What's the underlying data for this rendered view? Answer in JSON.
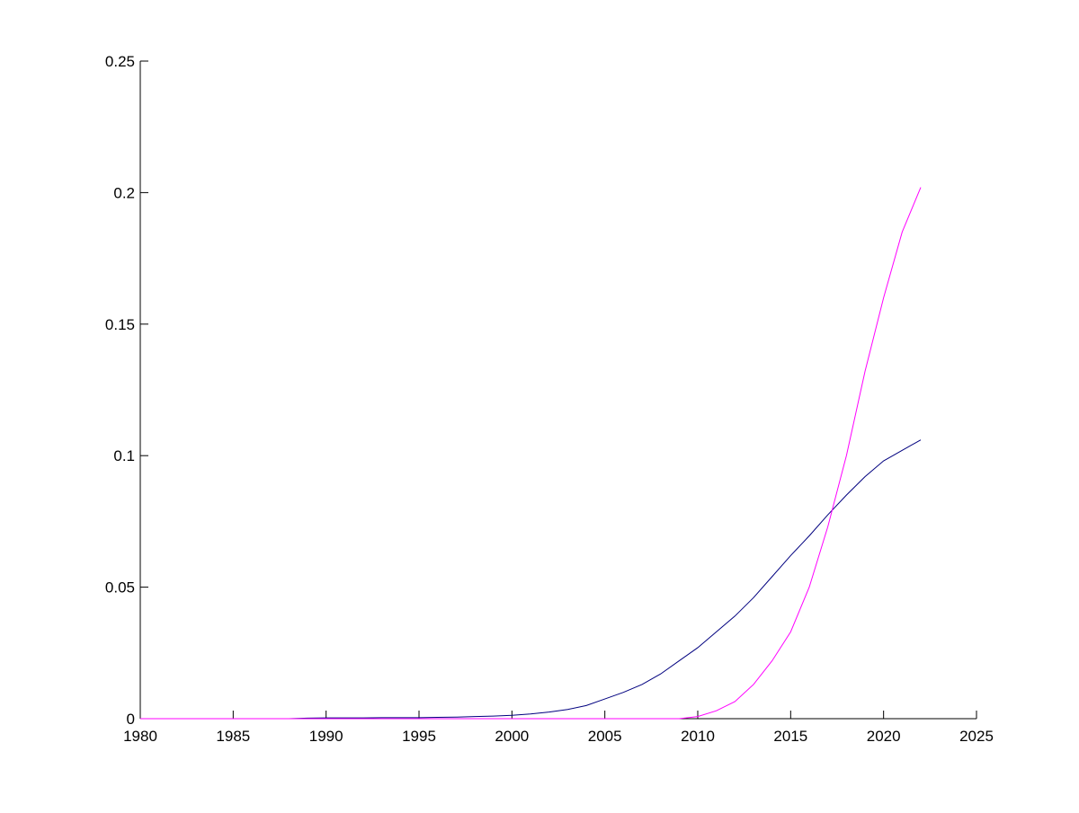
{
  "chart_data": {
    "type": "line",
    "x": [
      1980,
      1981,
      1982,
      1983,
      1984,
      1985,
      1986,
      1987,
      1988,
      1989,
      1990,
      1991,
      1992,
      1993,
      1994,
      1995,
      1996,
      1997,
      1998,
      1999,
      2000,
      2001,
      2002,
      2003,
      2004,
      2005,
      2006,
      2007,
      2008,
      2009,
      2010,
      2011,
      2012,
      2013,
      2014,
      2015,
      2016,
      2017,
      2018,
      2019,
      2020,
      2021,
      2022
    ],
    "series": [
      {
        "color": "#00007f",
        "values": [
          0,
          0,
          0,
          0,
          0,
          0,
          0,
          0,
          0,
          0.0002,
          0.0003,
          0.0003,
          0.0003,
          0.0004,
          0.0004,
          0.0004,
          0.0005,
          0.0006,
          0.0008,
          0.001,
          0.0013,
          0.0018,
          0.0025,
          0.0035,
          0.005,
          0.0075,
          0.01,
          0.013,
          0.017,
          0.022,
          0.027,
          0.033,
          0.039,
          0.046,
          0.054,
          0.062,
          0.0695,
          0.0775,
          0.085,
          0.092,
          0.098,
          0.102,
          0.106
        ]
      },
      {
        "color": "#ff00ff",
        "values": [
          0,
          0,
          0,
          0,
          0,
          0,
          0,
          0,
          0,
          0,
          0,
          0,
          0,
          0,
          0,
          0,
          0,
          0,
          0,
          0,
          0,
          0,
          0,
          0,
          0,
          0,
          0,
          0,
          0,
          0,
          0.0008,
          0.003,
          0.0065,
          0.013,
          0.022,
          0.033,
          0.05,
          0.073,
          0.1,
          0.132,
          0.16,
          0.185,
          0.202
        ]
      }
    ],
    "xlim": [
      1980,
      2025
    ],
    "xticks": [
      1980,
      1985,
      1990,
      1995,
      2000,
      2005,
      2010,
      2015,
      2020,
      2025
    ],
    "ylim": [
      0,
      0.25
    ],
    "yticks": [
      0,
      0.05,
      0.1,
      0.15,
      0.2,
      0.25
    ]
  }
}
